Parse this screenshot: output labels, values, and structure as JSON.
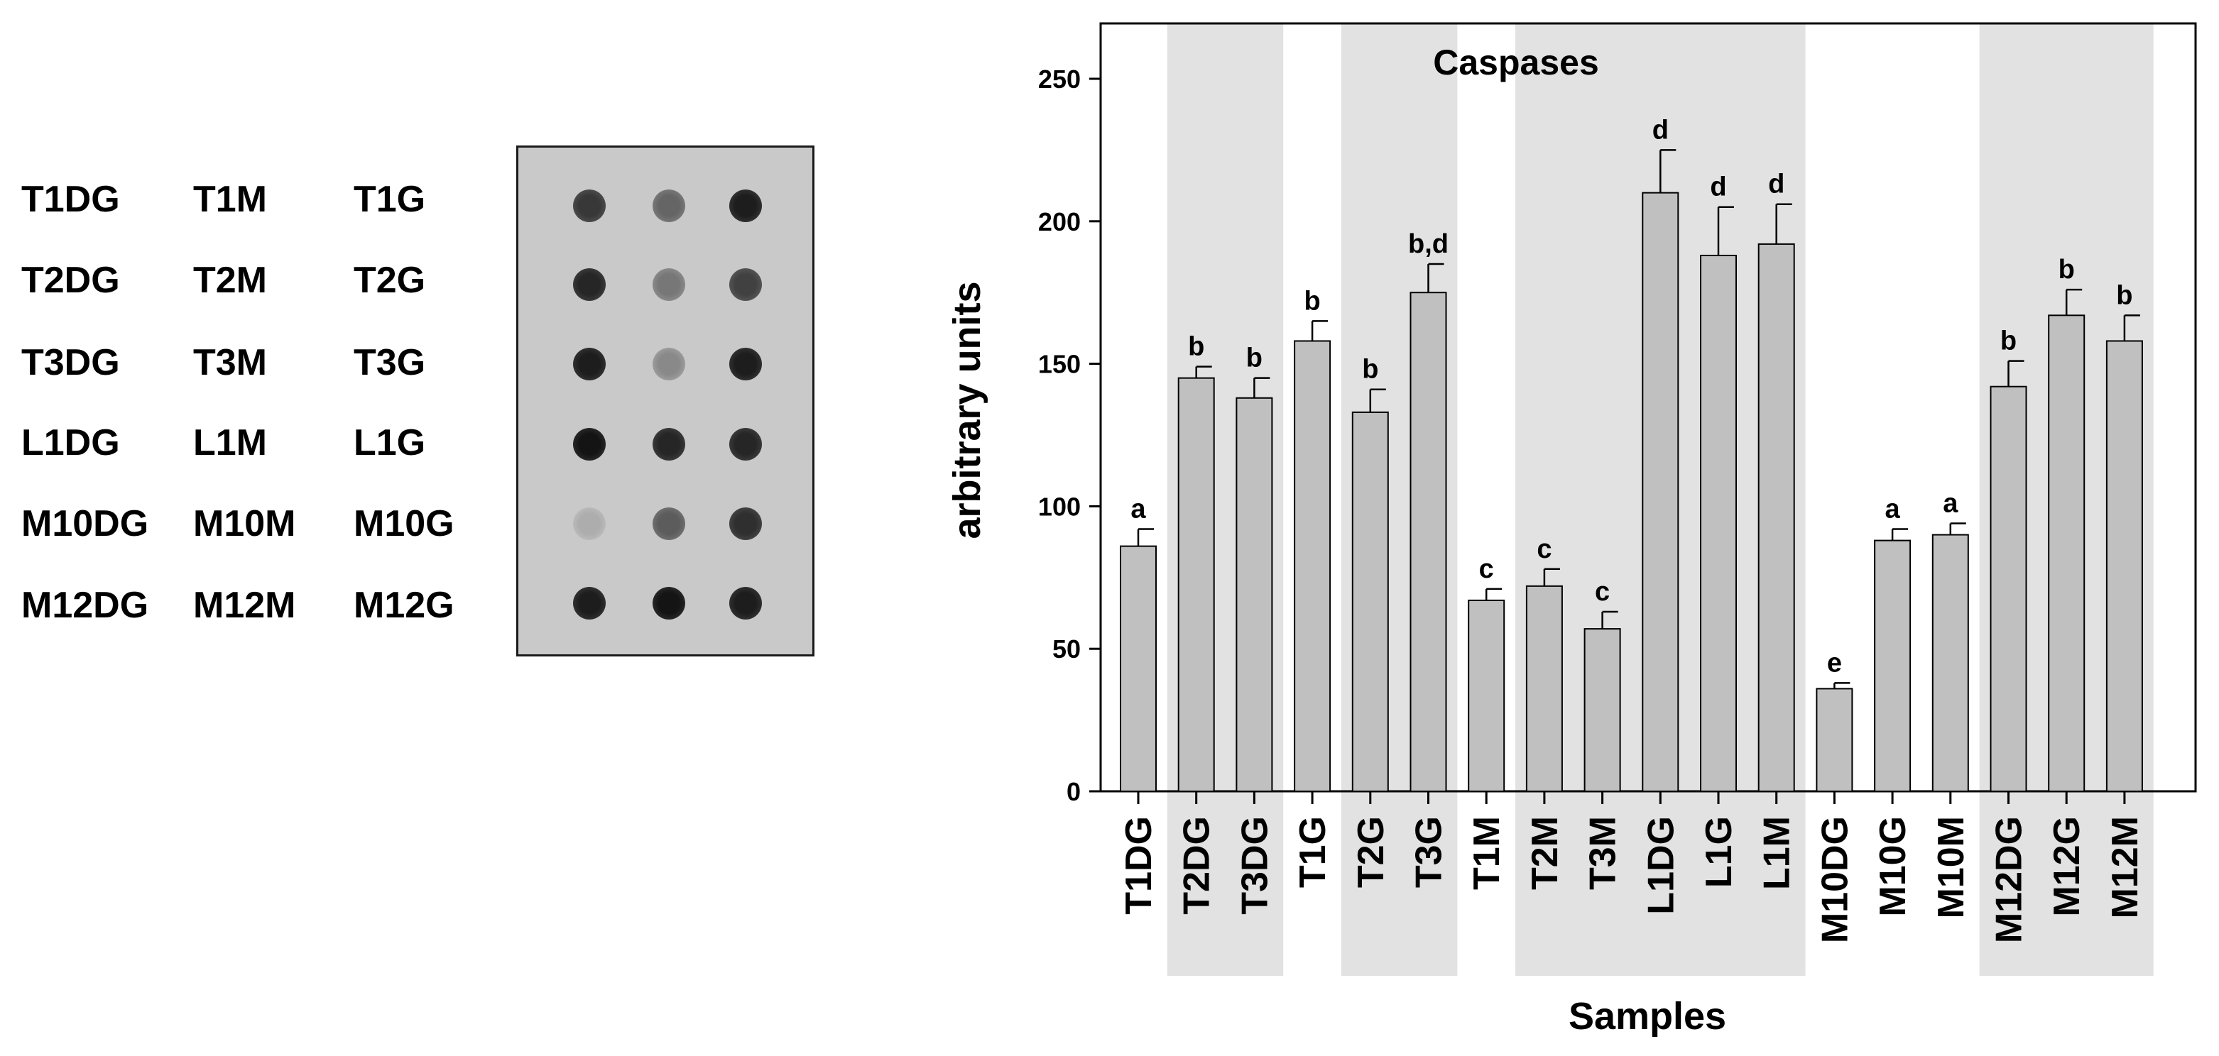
{
  "blot_labels": [
    [
      "T1DG",
      "T1M",
      "T1G"
    ],
    [
      "T2DG",
      "T2M",
      "T2G"
    ],
    [
      "T3DG",
      "T3M",
      "T3G"
    ],
    [
      "L1DG",
      "L1M",
      "L1G"
    ],
    [
      "M10DG",
      "M10M",
      "M10G"
    ],
    [
      "M12DG",
      "M12M",
      "M12G"
    ]
  ],
  "blot_spot_intensity": [
    [
      0.8,
      0.55,
      0.95
    ],
    [
      0.9,
      0.45,
      0.75
    ],
    [
      0.95,
      0.35,
      0.95
    ],
    [
      1.0,
      0.9,
      0.9
    ],
    [
      0.15,
      0.6,
      0.85
    ],
    [
      0.95,
      1.0,
      0.95
    ]
  ],
  "chart_data": {
    "type": "bar",
    "title": "Caspases",
    "xlabel": "Samples",
    "ylabel": "arbitrary units",
    "ylim": [
      0,
      250
    ],
    "yticks": [
      0,
      50,
      100,
      150,
      200,
      250
    ],
    "categories": [
      "T1DG",
      "T2DG",
      "T3DG",
      "T1G",
      "T2G",
      "T3G",
      "T1M",
      "T2M",
      "T3M",
      "L1DG",
      "L1G",
      "L1M",
      "M10DG",
      "M10G",
      "M10M",
      "M12DG",
      "M12G",
      "M12M"
    ],
    "values": [
      86,
      145,
      138,
      158,
      133,
      175,
      67,
      72,
      57,
      210,
      188,
      192,
      36,
      88,
      90,
      142,
      167,
      158
    ],
    "errors": [
      6,
      4,
      7,
      7,
      8,
      10,
      4,
      6,
      6,
      15,
      17,
      14,
      2,
      4,
      4,
      9,
      9,
      9
    ],
    "significance_labels": [
      "a",
      "b",
      "b",
      "b",
      "b",
      "b,d",
      "c",
      "c",
      "c",
      "d",
      "d",
      "d",
      "e",
      "a",
      "a",
      "b",
      "b",
      "b"
    ],
    "shaded_groups": [
      [
        1,
        2
      ],
      [
        4,
        5
      ],
      [
        7,
        11
      ],
      [
        15,
        17
      ]
    ],
    "bar_color": "#c0c0c0",
    "shade_color": "#e2e2e2"
  }
}
